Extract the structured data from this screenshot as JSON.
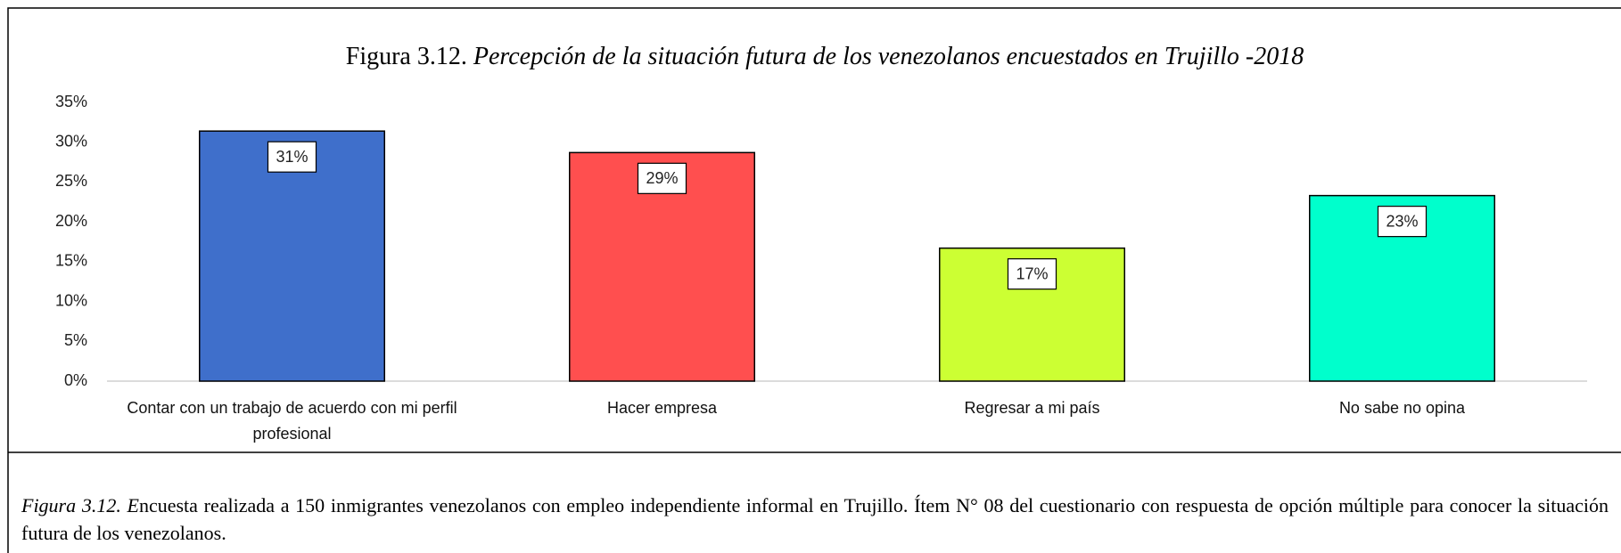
{
  "chart_data": {
    "type": "bar",
    "title": [
      "Figura 3.12.",
      "Percepción de la situación futura de los venezolanos encuestados en Trujillo -2018"
    ],
    "categories": [
      "Contar con un trabajo de acuerdo con mi perfil profesional",
      "Hacer empresa",
      "Regresar a mi país",
      "No sabe no opina"
    ],
    "values": [
      31.4,
      28.7,
      16.7,
      23.3
    ],
    "value_labels": [
      "31%",
      "29%",
      "17%",
      "23%"
    ],
    "colors": [
      "#3f6fcb",
      "#ff4f4f",
      "#ccff33",
      "#00ffcc"
    ],
    "ylim": [
      0,
      35
    ],
    "yticks": [
      {
        "value": 0,
        "label": "0%"
      },
      {
        "value": 5,
        "label": "5%"
      },
      {
        "value": 10,
        "label": "10%"
      },
      {
        "value": 15,
        "label": "15%"
      },
      {
        "value": 20,
        "label": "20%"
      },
      {
        "value": 25,
        "label": "25%"
      },
      {
        "value": 30,
        "label": "30%"
      },
      {
        "value": 35,
        "label": "35%"
      }
    ],
    "grid": false,
    "caption": [
      "Figura 3.12. E",
      "ncuesta realizada a 150 inmigrantes venezolanos con empleo independiente informal en Trujillo. Ítem N° 08 del cuestionario con respuesta de opción múltiple para conocer la situación futura de los venezolanos."
    ]
  }
}
